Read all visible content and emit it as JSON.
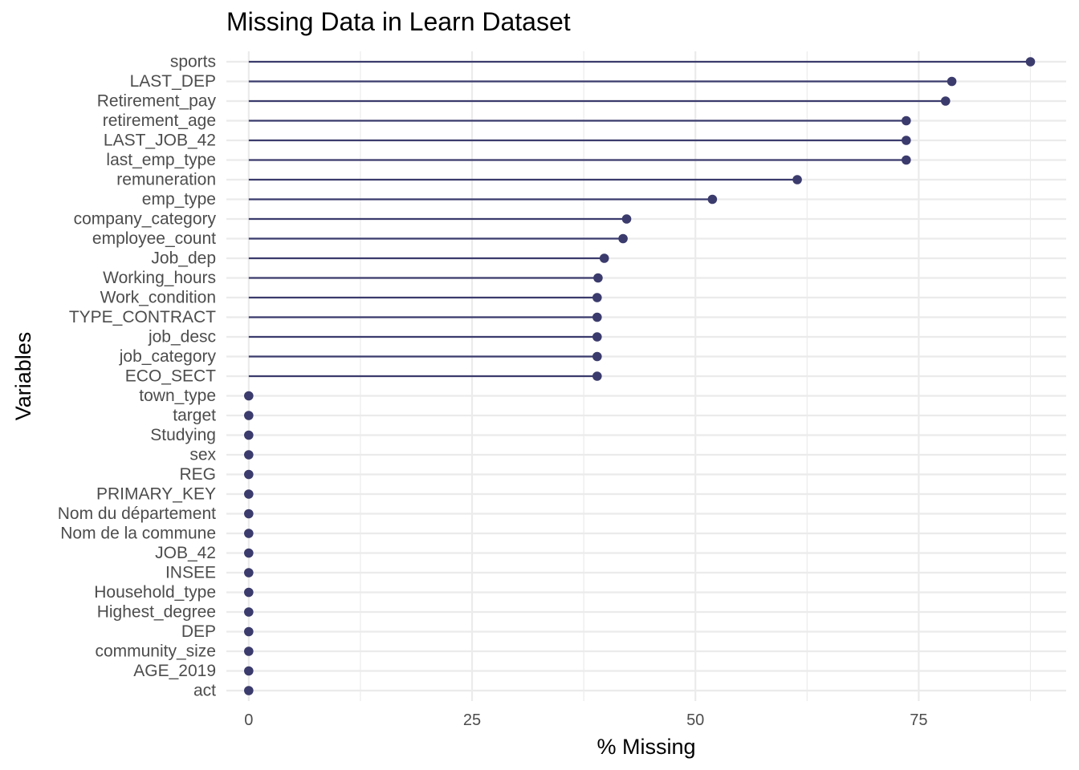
{
  "chart_data": {
    "type": "lollipop",
    "title": "Missing Data in Learn Dataset",
    "xlabel": "% Missing",
    "ylabel": "Variables",
    "xlim": [
      -2.5,
      91.5
    ],
    "x_ticks": [
      0,
      25,
      50,
      75
    ],
    "grid": true,
    "colors": {
      "mark": "#3b3b6d",
      "grid": "#ebebeb",
      "tick_text": "#4d4d4d"
    },
    "categories": [
      "sports",
      "LAST_DEP",
      "Retirement_pay",
      "retirement_age",
      "LAST_JOB_42",
      "last_emp_type",
      "remuneration",
      "emp_type",
      "company_category",
      "employee_count",
      "Job_dep",
      "Working_hours",
      "Work_condition",
      "TYPE_CONTRACT",
      "job_desc",
      "job_category",
      "ECO_SECT",
      "town_type",
      "target",
      "Studying",
      "sex",
      "REG",
      "PRIMARY_KEY",
      "Nom du département",
      "Nom de la commune",
      "JOB_42",
      "INSEE",
      "Household_type",
      "Highest_degree",
      "DEP",
      "community_size",
      "AGE_2019",
      "act"
    ],
    "values": [
      87.5,
      78.7,
      78.0,
      73.6,
      73.6,
      73.6,
      61.4,
      51.9,
      42.3,
      41.9,
      39.8,
      39.1,
      39.0,
      39.0,
      39.0,
      39.0,
      39.0,
      0,
      0,
      0,
      0,
      0,
      0,
      0,
      0,
      0,
      0,
      0,
      0,
      0,
      0,
      0,
      0
    ]
  }
}
